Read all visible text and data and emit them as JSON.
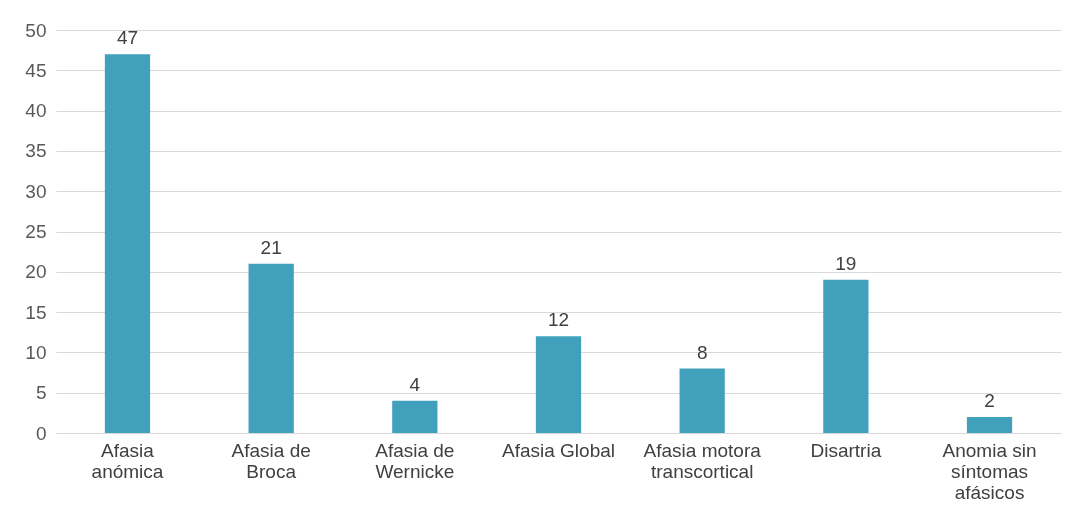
{
  "chart_data": {
    "type": "bar",
    "categories": [
      "Afasia anómica",
      "Afasia de Broca",
      "Afasia de Wernicke",
      "Afasia Global",
      "Afasia motora transcortical",
      "Disartria",
      "Anomia sin síntomas afásicos"
    ],
    "values": [
      47,
      21,
      4,
      12,
      8,
      19,
      2
    ],
    "color": "#41a0bb",
    "ylim": [
      0,
      50
    ],
    "yticks": [
      0,
      5,
      10,
      15,
      20,
      25,
      30,
      35,
      40,
      45,
      50
    ],
    "grid": "y",
    "data_labels": true
  }
}
